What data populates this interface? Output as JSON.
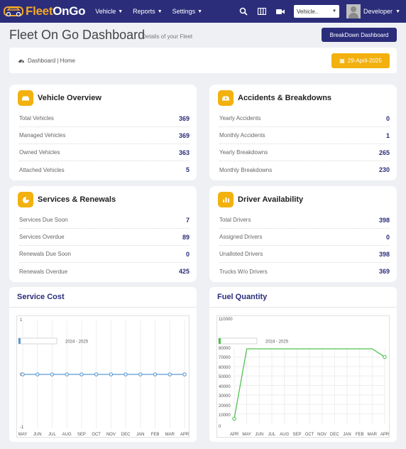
{
  "brand": {
    "part1": "Fleet",
    "part2": "OnGo"
  },
  "nav": {
    "items": [
      "Vehicle",
      "Reports",
      "Settings"
    ]
  },
  "vehicle_select": {
    "value": "Vehicle.."
  },
  "user": {
    "name": "Developer"
  },
  "header": {
    "title": "Fleet On Go Dashboard",
    "subtitle": "Details of your Fleet",
    "breakdown_button": "BreakDown Dashboard",
    "breadcrumb": "Dashboard | Home",
    "date": "29-April-2025"
  },
  "cards": {
    "vehicle": {
      "title": "Vehicle Overview",
      "rows": [
        {
          "label": "Total Vehicles",
          "value": "369"
        },
        {
          "label": "Managed Vehicles",
          "value": "369"
        },
        {
          "label": "Owned Vehicles",
          "value": "363"
        },
        {
          "label": "Attached Vehicles",
          "value": "5"
        }
      ]
    },
    "accidents": {
      "title": "Accidents & Breakdowns",
      "rows": [
        {
          "label": "Yearly Accidents",
          "value": "0"
        },
        {
          "label": "Monthly Accidents",
          "value": "1"
        },
        {
          "label": "Yearly Breakdowns",
          "value": "265"
        },
        {
          "label": "Monthly Breakdowns",
          "value": "230"
        }
      ]
    },
    "services": {
      "title": "Services & Renewals",
      "rows": [
        {
          "label": "Services Due Soon",
          "value": "7"
        },
        {
          "label": "Services Overdue",
          "value": "89"
        },
        {
          "label": "Renewals Due Soon",
          "value": "0"
        },
        {
          "label": "Renewals Overdue",
          "value": "425"
        }
      ]
    },
    "drivers": {
      "title": "Driver Availability",
      "rows": [
        {
          "label": "Total Drivers",
          "value": "398"
        },
        {
          "label": "Assigned Drivers",
          "value": "0"
        },
        {
          "label": "Unalloted Drivers",
          "value": "398"
        },
        {
          "label": "Trucks W/o Drivers",
          "value": "369"
        }
      ]
    }
  },
  "colors": {
    "navy": "#2b2d7a",
    "accent": "#f2b10e",
    "service_line": "#5b9bd5",
    "fuel_line": "#4fc24f"
  },
  "chart_data": [
    {
      "type": "line",
      "title": "Service Cost",
      "legend": "2024 - 2025",
      "categories": [
        "MAY",
        "JUN",
        "JUL",
        "AUG",
        "SEP",
        "OCT",
        "NOV",
        "DEC",
        "JAN",
        "FEB",
        "MAR",
        "APR"
      ],
      "series": [
        {
          "name": "2024 - 2025",
          "values": [
            0,
            0,
            0,
            0,
            0,
            0,
            0,
            0,
            0,
            0,
            0,
            0
          ]
        }
      ],
      "yticks": [
        "1",
        "0",
        "-1"
      ],
      "ylim": [
        -1,
        1
      ]
    },
    {
      "type": "line",
      "title": "Fuel Quantity",
      "legend": "2024 - 2025",
      "categories": [
        "APR",
        "MAY",
        "JUN",
        "JUL",
        "AUG",
        "SEP",
        "OCT",
        "NOV",
        "DEC",
        "JAN",
        "FEB",
        "MAR",
        "APR"
      ],
      "series": [
        {
          "name": "2024 - 2025",
          "values": [
            5000,
            100000,
            105000,
            108000,
            103000,
            110000,
            106000,
            112000,
            104000,
            109000,
            107000,
            100000,
            70000
          ]
        }
      ],
      "yticks": [
        "110000",
        "80000",
        "70000",
        "60000",
        "50000",
        "40000",
        "30000",
        "20000",
        "10000",
        "0"
      ],
      "ylim": [
        0,
        110000
      ]
    }
  ]
}
